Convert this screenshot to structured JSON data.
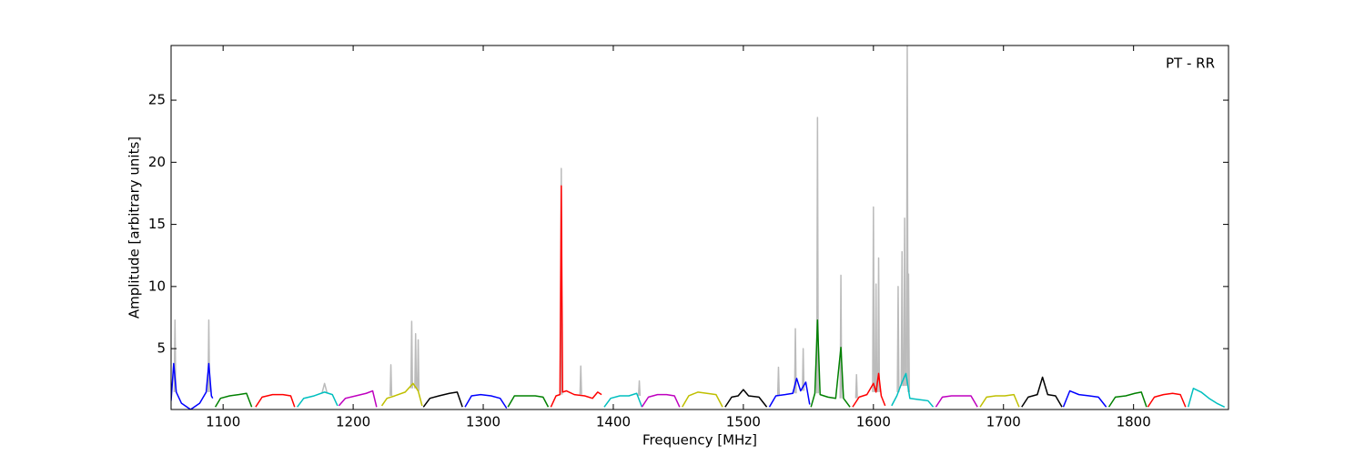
{
  "chart_data": {
    "type": "line",
    "annotation": "PT - RR",
    "xlabel": "Frequency [MHz]",
    "ylabel": "Amplitude [arbitrary units]",
    "xlim": [
      1060,
      1873
    ],
    "ylim": [
      0.1,
      29.4
    ],
    "xticks": [
      1100,
      1200,
      1300,
      1400,
      1500,
      1600,
      1700,
      1800
    ],
    "yticks": [
      5,
      10,
      15,
      20,
      25
    ],
    "grid": false,
    "series": [
      {
        "color": "#bbbbbb",
        "x": [
          1062.4,
          1063,
          1063.6,
          null,
          1088.4,
          1089,
          1089.6,
          null,
          1176,
          1178,
          1180,
          null,
          1228.4,
          1229,
          1229.6,
          null,
          1244.4,
          1245,
          1245.6,
          null,
          1247.4,
          1248,
          1248.6,
          null,
          1249.4,
          1250,
          1250.6,
          null,
          1359.4,
          1360,
          1360.6,
          null,
          1374.4,
          1375,
          1375.6,
          null,
          1419.4,
          1420,
          1420.6,
          null,
          1526.4,
          1527,
          1527.6,
          null,
          1539.4,
          1540,
          1540.6,
          null,
          1545.4,
          1546,
          1546.6,
          null,
          1556.4,
          1557,
          1557.6,
          null,
          1574.4,
          1575,
          1575.6,
          null,
          1586.4,
          1587,
          1587.6,
          null,
          1599.4,
          1600,
          1600.6,
          null,
          1601.4,
          1602,
          1602.6,
          null,
          1603.4,
          1604,
          1604.6,
          null,
          1618.4,
          1619,
          1619.6,
          null,
          1621.4,
          1622,
          1622.6,
          null,
          1623.4,
          1624,
          1624.6,
          null,
          1625.4,
          1626,
          1626.6,
          null,
          1626.8,
          1627,
          1627.6
        ],
        "values": [
          1.5,
          7.3,
          1.5,
          null,
          1.5,
          7.3,
          1.5,
          null,
          1.4,
          2.2,
          1.4,
          null,
          1.2,
          3.7,
          1.2,
          null,
          1.8,
          7.2,
          1.8,
          null,
          1.8,
          6.2,
          1.8,
          null,
          1.6,
          5.7,
          1.6,
          null,
          1.3,
          19.5,
          1.3,
          null,
          1.3,
          3.6,
          1.3,
          null,
          1.2,
          2.4,
          1.2,
          null,
          1.2,
          3.5,
          1.2,
          null,
          1.4,
          6.6,
          1.4,
          null,
          1.6,
          5.0,
          1.6,
          null,
          1.4,
          23.6,
          1.4,
          null,
          1.0,
          10.9,
          1.0,
          null,
          1.0,
          2.9,
          1.0,
          null,
          1.5,
          16.4,
          1.5,
          null,
          1.5,
          10.2,
          1.5,
          null,
          1.5,
          12.3,
          1.5,
          null,
          1.5,
          10.0,
          1.5,
          null,
          2.0,
          12.8,
          2.0,
          null,
          2.0,
          15.5,
          2.0,
          null,
          2.0,
          29.4,
          2.0,
          null,
          1.5,
          11.0,
          1.5
        ]
      },
      {
        "color": "#0000ff",
        "x": [
          1060,
          1062,
          1064,
          1068,
          1075,
          1082,
          1087,
          1089,
          1091,
          1092
        ],
        "values": [
          0.8,
          3.8,
          1.5,
          0.6,
          0.1,
          0.6,
          1.5,
          3.8,
          1.2,
          1.0
        ]
      },
      {
        "color": "#008000",
        "x": [
          1094,
          1098,
          1105,
          1112,
          1118,
          1122
        ],
        "values": [
          0.3,
          1.0,
          1.2,
          1.3,
          1.4,
          0.3
        ]
      },
      {
        "color": "#ff0000",
        "x": [
          1125,
          1130,
          1138,
          1146,
          1152,
          1155
        ],
        "values": [
          0.3,
          1.1,
          1.3,
          1.3,
          1.2,
          0.3
        ]
      },
      {
        "color": "#00bfbf",
        "x": [
          1157,
          1162,
          1170,
          1178,
          1184,
          1188
        ],
        "values": [
          0.3,
          1.0,
          1.2,
          1.5,
          1.3,
          0.4
        ]
      },
      {
        "color": "#bf00bf",
        "x": [
          1189,
          1194,
          1202,
          1210,
          1215,
          1218
        ],
        "values": [
          0.4,
          1.0,
          1.2,
          1.4,
          1.6,
          0.3
        ]
      },
      {
        "color": "#bfbf00",
        "x": [
          1222,
          1226,
          1232,
          1240,
          1246,
          1250,
          1253
        ],
        "values": [
          0.4,
          1.0,
          1.2,
          1.5,
          2.2,
          1.6,
          0.4
        ]
      },
      {
        "color": "#000000",
        "x": [
          1254,
          1259,
          1266,
          1274,
          1280,
          1284
        ],
        "values": [
          0.3,
          1.0,
          1.2,
          1.4,
          1.5,
          0.3
        ]
      },
      {
        "color": "#0000ff",
        "x": [
          1286,
          1291,
          1298,
          1306,
          1313,
          1318
        ],
        "values": [
          0.3,
          1.2,
          1.3,
          1.2,
          1.0,
          0.2
        ]
      },
      {
        "color": "#008000",
        "x": [
          1319,
          1324,
          1332,
          1340,
          1346,
          1350
        ],
        "values": [
          0.3,
          1.2,
          1.2,
          1.2,
          1.1,
          0.3
        ]
      },
      {
        "color": "#ff0000",
        "x": [
          1352,
          1356,
          1359,
          1360,
          1361,
          1364,
          1370,
          1378,
          1384,
          1388,
          1391
        ],
        "values": [
          0.3,
          1.2,
          1.3,
          18.1,
          1.5,
          1.6,
          1.3,
          1.2,
          1.0,
          1.5,
          1.3
        ]
      },
      {
        "color": "#00bfbf",
        "x": [
          1393,
          1398,
          1405,
          1412,
          1418,
          1422
        ],
        "values": [
          0.3,
          1.0,
          1.2,
          1.2,
          1.4,
          0.3
        ]
      },
      {
        "color": "#bf00bf",
        "x": [
          1422,
          1427,
          1434,
          1441,
          1447,
          1451
        ],
        "values": [
          0.3,
          1.1,
          1.3,
          1.3,
          1.2,
          0.3
        ]
      },
      {
        "color": "#bfbf00",
        "x": [
          1453,
          1458,
          1465,
          1472,
          1479,
          1484
        ],
        "values": [
          0.3,
          1.2,
          1.5,
          1.4,
          1.3,
          0.3
        ]
      },
      {
        "color": "#000000",
        "x": [
          1486,
          1491,
          1496,
          1500,
          1504,
          1512,
          1518
        ],
        "values": [
          0.3,
          1.1,
          1.2,
          1.7,
          1.2,
          1.1,
          0.3
        ]
      },
      {
        "color": "#0000ff",
        "x": [
          1520,
          1525,
          1532,
          1538,
          1541,
          1544,
          1548,
          1551
        ],
        "values": [
          0.3,
          1.2,
          1.3,
          1.4,
          2.6,
          1.6,
          2.3,
          0.5
        ]
      },
      {
        "color": "#008000",
        "x": [
          1552,
          1555,
          1557,
          1559,
          1565,
          1571,
          1575,
          1577,
          1582
        ],
        "values": [
          0.3,
          1.4,
          7.3,
          1.3,
          1.1,
          1.0,
          5.1,
          1.0,
          0.3
        ]
      },
      {
        "color": "#ff0000",
        "x": [
          1584,
          1589,
          1595,
          1600,
          1602,
          1604,
          1606,
          1609
        ],
        "values": [
          0.3,
          1.1,
          1.3,
          2.2,
          1.5,
          3.0,
          1.2,
          0.4
        ]
      },
      {
        "color": "#00bfbf",
        "x": [
          1614,
          1618,
          1622,
          1625,
          1628,
          1635,
          1642,
          1646
        ],
        "values": [
          0.4,
          1.2,
          2.3,
          3.0,
          1.0,
          0.9,
          0.8,
          0.3
        ]
      },
      {
        "color": "#bf00bf",
        "x": [
          1648,
          1653,
          1660,
          1668,
          1675,
          1680
        ],
        "values": [
          0.3,
          1.1,
          1.2,
          1.2,
          1.2,
          0.3
        ]
      },
      {
        "color": "#bfbf00",
        "x": [
          1682,
          1687,
          1694,
          1701,
          1708,
          1712
        ],
        "values": [
          0.3,
          1.1,
          1.2,
          1.2,
          1.3,
          0.3
        ]
      },
      {
        "color": "#000000",
        "x": [
          1714,
          1719,
          1726,
          1730,
          1734,
          1740,
          1745
        ],
        "values": [
          0.3,
          1.1,
          1.3,
          2.7,
          1.3,
          1.2,
          0.3
        ]
      },
      {
        "color": "#0000ff",
        "x": [
          1746,
          1751,
          1758,
          1766,
          1773,
          1779
        ],
        "values": [
          0.3,
          1.6,
          1.3,
          1.2,
          1.1,
          0.3
        ]
      },
      {
        "color": "#008000",
        "x": [
          1781,
          1786,
          1794,
          1801,
          1806,
          1810
        ],
        "values": [
          0.3,
          1.1,
          1.2,
          1.4,
          1.5,
          0.3
        ]
      },
      {
        "color": "#ff0000",
        "x": [
          1811,
          1816,
          1823,
          1830,
          1836,
          1840
        ],
        "values": [
          0.3,
          1.1,
          1.3,
          1.4,
          1.3,
          0.3
        ]
      },
      {
        "color": "#00bfbf",
        "x": [
          1842,
          1846,
          1852,
          1858,
          1864,
          1870
        ],
        "values": [
          0.3,
          1.8,
          1.5,
          1.0,
          0.6,
          0.3
        ]
      }
    ]
  }
}
